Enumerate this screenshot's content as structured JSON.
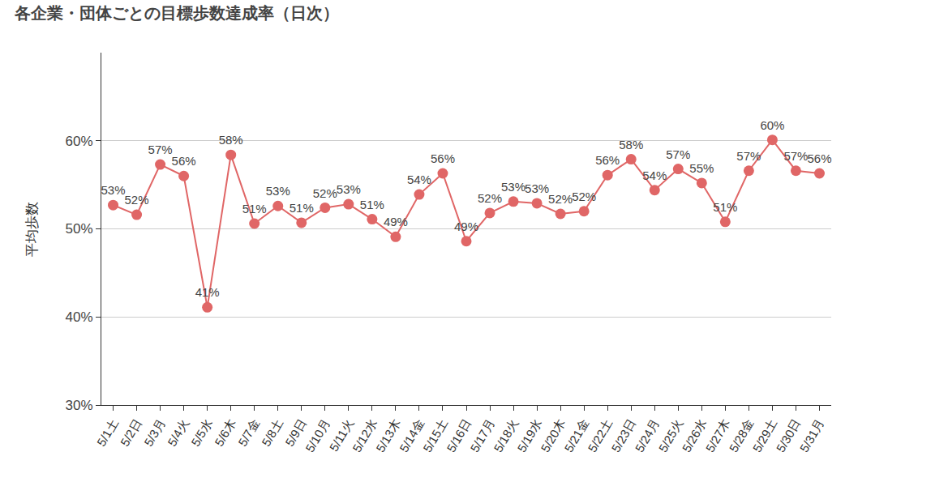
{
  "chart_data": {
    "type": "line",
    "title": "各企業・団体ごとの目標歩数達成率（日次）",
    "y_label": "平均歩数",
    "categories": [
      "5/1土",
      "5/2日",
      "5/3月",
      "5/4火",
      "5/5水",
      "5/6木",
      "5/7金",
      "5/8土",
      "5/9日",
      "5/10月",
      "5/11火",
      "5/12水",
      "5/13木",
      "5/14金",
      "5/15土",
      "5/16日",
      "5/17月",
      "5/18火",
      "5/19水",
      "5/20木",
      "5/21金",
      "5/22土",
      "5/23日",
      "5/24月",
      "5/25火",
      "5/26水",
      "5/27木",
      "5/28金",
      "5/29土",
      "5/30日",
      "5/31月"
    ],
    "values": [
      52.7,
      51.6,
      57.3,
      56.0,
      41.1,
      58.4,
      50.6,
      52.6,
      50.7,
      52.4,
      52.8,
      51.1,
      49.1,
      53.9,
      56.3,
      48.6,
      51.8,
      53.1,
      52.9,
      51.7,
      52.0,
      56.1,
      57.9,
      54.4,
      56.8,
      55.2,
      50.8,
      56.6,
      60.1,
      56.6,
      56.3
    ],
    "value_labels": [
      "53%",
      "52%",
      "57%",
      "56%",
      "41%",
      "58%",
      "51%",
      "53%",
      "51%",
      "52%",
      "53%",
      "51%",
      "49%",
      "54%",
      "56%",
      "49%",
      "52%",
      "53%",
      "53%",
      "52%",
      "52%",
      "56%",
      "58%",
      "54%",
      "57%",
      "55%",
      "51%",
      "57%",
      "60%",
      "57%",
      "56%"
    ],
    "color": "#e06666",
    "marker": "circle",
    "line_style": "solid",
    "data_labels": true,
    "grid": true,
    "ylim": [
      30,
      70
    ],
    "yticks": [
      {
        "value": 30,
        "label": "30%"
      },
      {
        "value": 40,
        "label": "40%"
      },
      {
        "value": 50,
        "label": "50%"
      },
      {
        "value": 60,
        "label": "60%"
      }
    ]
  }
}
